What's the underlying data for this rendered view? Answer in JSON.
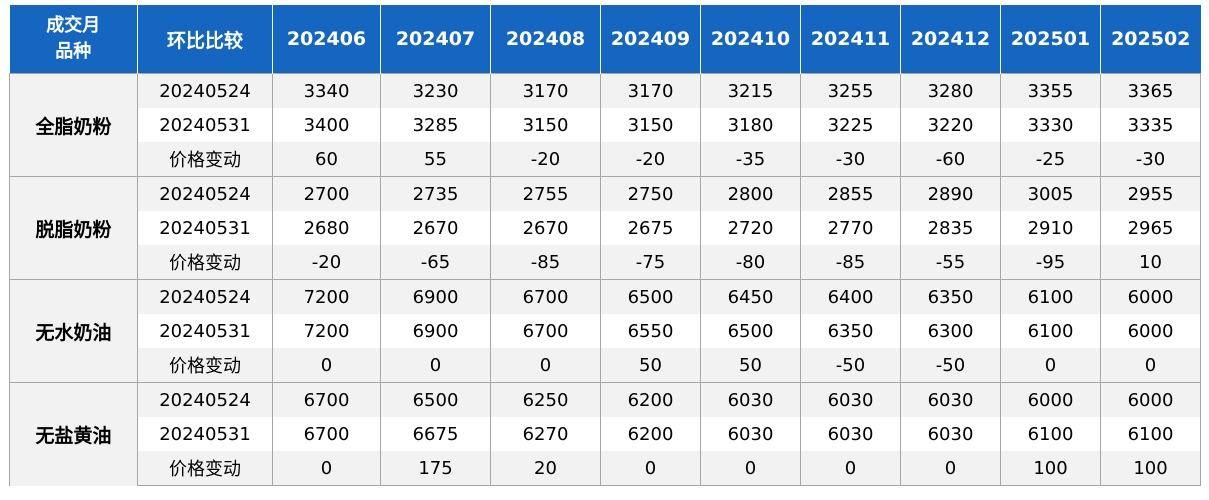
{
  "table": {
    "header": {
      "corner_line1": "成交月",
      "corner_line2": "品种",
      "compare_label": "环比比较",
      "months": [
        "202406",
        "202407",
        "202408",
        "202409",
        "202410",
        "202411",
        "202412",
        "202501",
        "202502"
      ]
    },
    "groups": [
      {
        "product": "全脂奶粉",
        "rows": [
          {
            "label": "20240524",
            "values": [
              "3340",
              "3230",
              "3170",
              "3170",
              "3215",
              "3255",
              "3280",
              "3355",
              "3365"
            ]
          },
          {
            "label": "20240531",
            "values": [
              "3400",
              "3285",
              "3150",
              "3150",
              "3180",
              "3225",
              "3220",
              "3330",
              "3335"
            ]
          },
          {
            "label": "价格变动",
            "values": [
              "60",
              "55",
              "-20",
              "-20",
              "-35",
              "-30",
              "-60",
              "-25",
              "-30"
            ]
          }
        ]
      },
      {
        "product": "脱脂奶粉",
        "rows": [
          {
            "label": "20240524",
            "values": [
              "2700",
              "2735",
              "2755",
              "2750",
              "2800",
              "2855",
              "2890",
              "3005",
              "2955"
            ]
          },
          {
            "label": "20240531",
            "values": [
              "2680",
              "2670",
              "2670",
              "2675",
              "2720",
              "2770",
              "2835",
              "2910",
              "2965"
            ]
          },
          {
            "label": "价格变动",
            "values": [
              "-20",
              "-65",
              "-85",
              "-75",
              "-80",
              "-85",
              "-55",
              "-95",
              "10"
            ]
          }
        ]
      },
      {
        "product": "无水奶油",
        "rows": [
          {
            "label": "20240524",
            "values": [
              "7200",
              "6900",
              "6700",
              "6500",
              "6450",
              "6400",
              "6350",
              "6100",
              "6000"
            ]
          },
          {
            "label": "20240531",
            "values": [
              "7200",
              "6900",
              "6700",
              "6550",
              "6500",
              "6350",
              "6300",
              "6100",
              "6000"
            ]
          },
          {
            "label": "价格变动",
            "values": [
              "0",
              "0",
              "0",
              "50",
              "50",
              "-50",
              "-50",
              "0",
              "0"
            ]
          }
        ]
      },
      {
        "product": "无盐黄油",
        "rows": [
          {
            "label": "20240524",
            "values": [
              "6700",
              "6500",
              "6250",
              "6200",
              "6030",
              "6030",
              "6030",
              "6000",
              "6000"
            ]
          },
          {
            "label": "20240531",
            "values": [
              "6700",
              "6675",
              "6270",
              "6200",
              "6030",
              "6030",
              "6030",
              "6100",
              "6100"
            ]
          },
          {
            "label": "价格变动",
            "values": [
              "0",
              "175",
              "20",
              "0",
              "0",
              "0",
              "0",
              "100",
              "100"
            ]
          }
        ]
      }
    ]
  },
  "colors": {
    "header_bg": "#1466c0",
    "increase": "#c00000",
    "decrease": "#00a04a",
    "shaded_row": "#f2f2f2"
  }
}
